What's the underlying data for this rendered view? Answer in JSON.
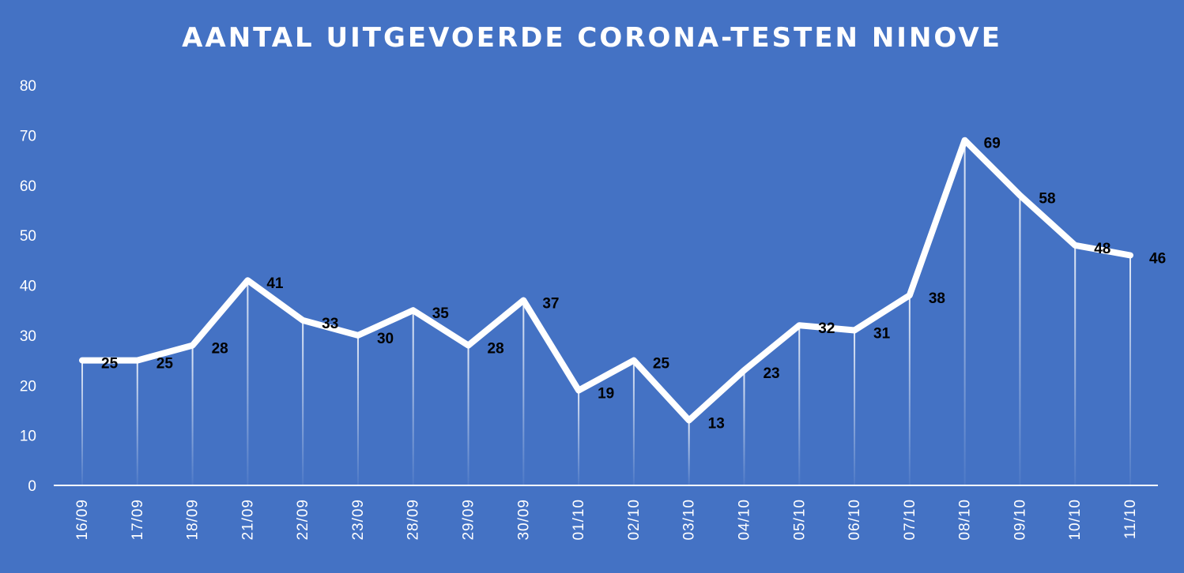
{
  "chart_data": {
    "type": "line",
    "title": "AANTAL UITGEVOERDE  CORONA-TESTEN NINOVE",
    "xlabel": "",
    "ylabel": "",
    "categories": [
      "16/09",
      "17/09",
      "18/09",
      "21/09",
      "22/09",
      "23/09",
      "28/09",
      "29/09",
      "30/09",
      "01/10",
      "02/10",
      "03/10",
      "04/10",
      "05/10",
      "06/10",
      "07/10",
      "08/10",
      "09/10",
      "10/10",
      "11/10"
    ],
    "series": [
      {
        "values": [
          25,
          25,
          28,
          41,
          33,
          30,
          35,
          28,
          37,
          19,
          25,
          13,
          23,
          32,
          31,
          38,
          69,
          58,
          48,
          46
        ]
      }
    ],
    "ylim": [
      0,
      80
    ],
    "yticks": [
      0,
      10,
      20,
      30,
      40,
      50,
      60,
      70,
      80
    ],
    "grid": false,
    "drop_lines": true,
    "data_labels": true,
    "colors": {
      "background": "#4472C4",
      "line": "#ffffff",
      "labels": "#000000",
      "axis_text": "#ffffff"
    }
  }
}
